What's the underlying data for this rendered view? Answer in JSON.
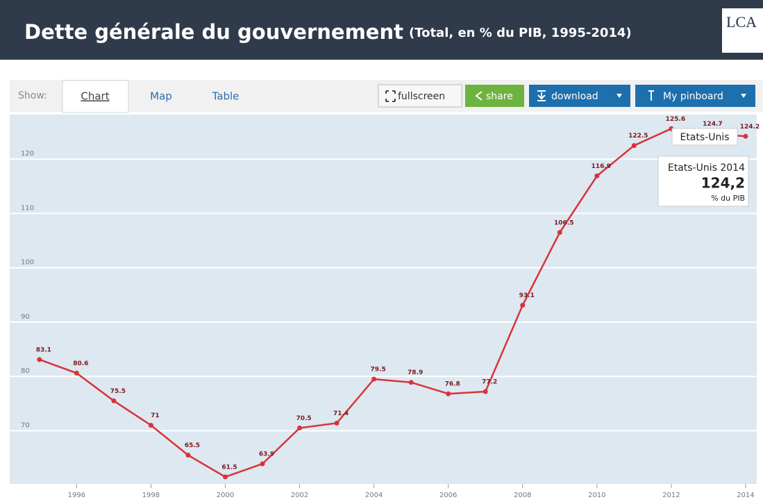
{
  "header": {
    "title": "Dette générale du gouvernement",
    "subtitle": "(Total, en % du PIB, 1995-2014)",
    "logo": "LCA"
  },
  "toolbar": {
    "show": "Show:",
    "tabs": [
      "Chart",
      "Map",
      "Table"
    ],
    "buttons": [
      "fullscreen",
      "share",
      "download",
      "My pinboard"
    ]
  },
  "tooltip": {
    "title": "Etats-Unis 2014",
    "value": "124,2",
    "unit": "% du PIB"
  },
  "chart_data": {
    "type": "line",
    "x": [
      1995,
      1996,
      1997,
      1998,
      1999,
      2000,
      2001,
      2002,
      2003,
      2004,
      2005,
      2006,
      2007,
      2008,
      2009,
      2010,
      2011,
      2012,
      2013,
      2014
    ],
    "series": [
      {
        "name": "Etats-Unis",
        "color": "#d9323a",
        "values": [
          83.1,
          80.6,
          75.5,
          71,
          65.5,
          61.5,
          63.9,
          70.5,
          71.4,
          79.5,
          78.9,
          76.8,
          77.2,
          93.1,
          106.5,
          116.9,
          122.5,
          125.6,
          124.7,
          124.2
        ]
      }
    ],
    "xlim": [
      1994.2,
      2014.3
    ],
    "xticks": [
      1996,
      1998,
      2000,
      2002,
      2004,
      2006,
      2008,
      2010,
      2012,
      2014
    ],
    "ylim": [
      60.2,
      128.2
    ],
    "yticks": [
      70,
      80,
      90,
      100,
      110,
      120
    ],
    "grid": true
  }
}
